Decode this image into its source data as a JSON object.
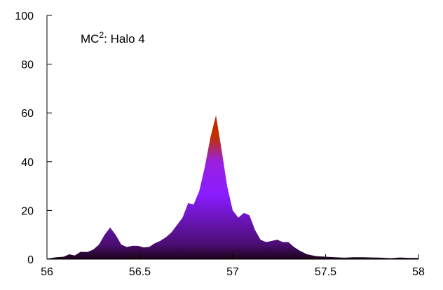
{
  "chart_data": {
    "type": "area",
    "annotation": {
      "text": "MC",
      "superscript": "2",
      "suffix": ": Halo 4"
    },
    "xlim": [
      56,
      58
    ],
    "ylim": [
      0,
      100
    ],
    "x_ticks": [
      56,
      56.5,
      57,
      57.5,
      58
    ],
    "x_tick_labels": [
      "56",
      "56.5",
      "57",
      "57.5",
      "58"
    ],
    "y_ticks": [
      0,
      20,
      40,
      60,
      80,
      100
    ],
    "y_tick_labels": [
      "0",
      "20",
      "40",
      "60",
      "80",
      "100"
    ],
    "grid": false,
    "legend": "none",
    "colors": {
      "high": "#c42400",
      "mid": "#8a1cff",
      "low": "#1a0418",
      "axis": "#000000"
    },
    "series": [
      {
        "x": [
          56.0,
          56.05,
          56.09,
          56.12,
          56.15,
          56.18,
          56.22,
          56.25,
          56.28,
          56.31,
          56.34,
          56.37,
          56.4,
          56.43,
          56.46,
          56.49,
          56.52,
          56.55,
          56.58,
          56.61,
          56.64,
          56.67,
          56.7,
          56.73,
          56.76,
          56.79,
          56.82,
          56.85,
          56.88,
          56.91,
          56.94,
          56.97,
          57.0,
          57.03,
          57.06,
          57.09,
          57.12,
          57.15,
          57.18,
          57.21,
          57.24,
          57.27,
          57.3,
          57.33,
          57.36,
          57.4,
          57.45,
          57.5,
          57.55,
          57.6,
          57.65,
          57.7,
          57.75,
          57.8,
          57.85,
          57.9,
          57.95,
          58.0
        ],
        "y": [
          0.2,
          0.8,
          1.0,
          2.0,
          1.5,
          3.0,
          3.0,
          4.0,
          6.0,
          10.0,
          13.0,
          10.0,
          6.0,
          5.0,
          5.5,
          5.5,
          4.8,
          5.0,
          6.5,
          7.5,
          9.0,
          11.0,
          14.0,
          17.0,
          23.0,
          22.5,
          28.0,
          38.0,
          50.0,
          59.0,
          45.0,
          30.0,
          20.0,
          17.0,
          19.0,
          18.0,
          12.0,
          8.0,
          7.0,
          7.5,
          8.0,
          7.0,
          7.0,
          5.0,
          3.5,
          2.0,
          1.2,
          1.0,
          0.8,
          0.6,
          0.8,
          0.8,
          0.7,
          0.6,
          0.4,
          0.7,
          0.5,
          0.5
        ]
      }
    ]
  }
}
